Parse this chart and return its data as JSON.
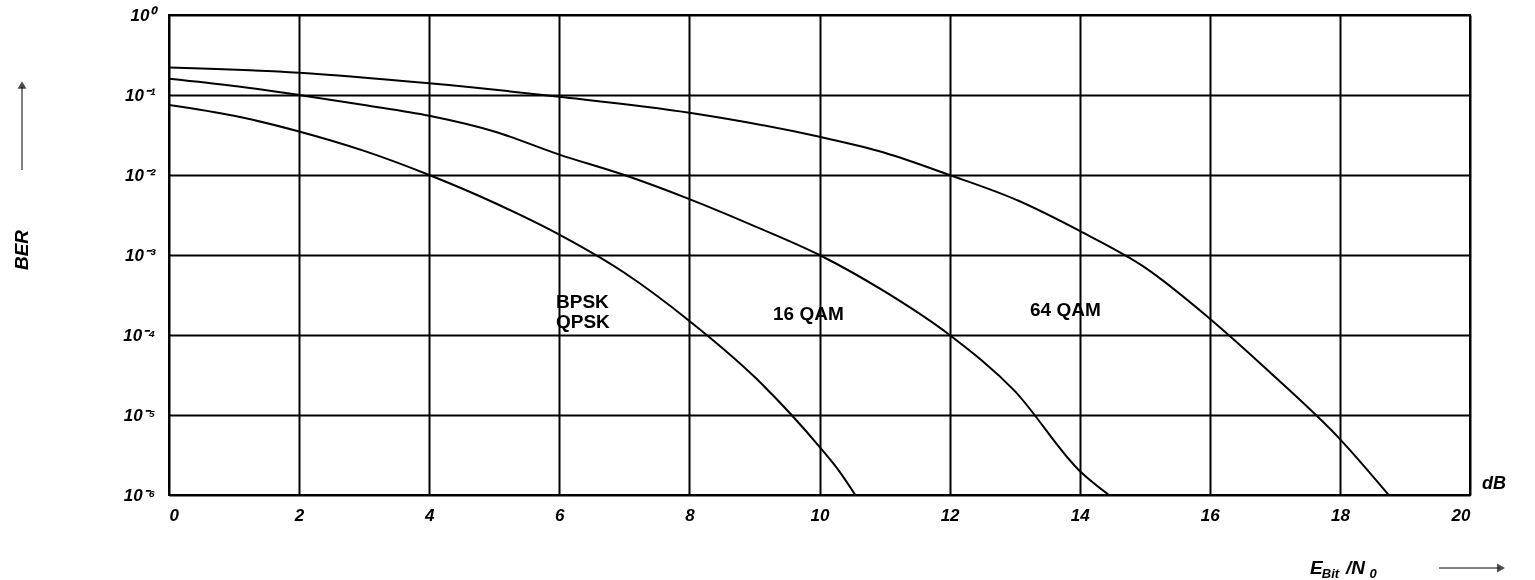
{
  "chart_data": {
    "type": "line",
    "xlabel": "E$_{Bit}$/N$_{0}$",
    "ylabel": "BER",
    "series": [
      {
        "name": "BPSK\nQPSK",
        "color": "#000000",
        "x": [
          0,
          1,
          2,
          3,
          4,
          5,
          6,
          7,
          8,
          9,
          10,
          10.3,
          10.55
        ],
        "values": [
          0.075,
          0.055,
          0.035,
          0.02,
          0.01,
          0.0045,
          0.0018,
          0.0006,
          0.00015,
          3e-05,
          4e-06,
          2e-06,
          1e-06
        ]
      },
      {
        "name": "16 QAM",
        "color": "#000000",
        "x": [
          0,
          1,
          2,
          3,
          4,
          5,
          6,
          7,
          8,
          9,
          10,
          11,
          12,
          13,
          14,
          14.45
        ],
        "values": [
          0.16,
          0.13,
          0.1,
          0.075,
          0.055,
          0.035,
          0.018,
          0.01,
          0.005,
          0.0023,
          0.001,
          0.00035,
          0.0001,
          2e-05,
          2e-06,
          1e-06
        ]
      },
      {
        "name": "64 QAM",
        "color": "#000000",
        "x": [
          0,
          2,
          4,
          6,
          8,
          10,
          11,
          12,
          13,
          14,
          15,
          16,
          17,
          18,
          18.75
        ],
        "values": [
          0.22,
          0.19,
          0.14,
          0.095,
          0.06,
          0.03,
          0.019,
          0.01,
          0.005,
          0.002,
          0.0007,
          0.00016,
          3e-05,
          5e-06,
          1e-06
        ]
      }
    ],
    "xlim": [
      0,
      20
    ],
    "xticks": [
      0,
      2,
      4,
      6,
      8,
      10,
      12,
      14,
      16,
      18,
      20
    ],
    "ylim": [
      1e-06,
      1
    ],
    "yticks": [
      {
        "value": 1e-06,
        "label": "10⁻⁶"
      },
      {
        "value": 1e-05,
        "label": "10⁻⁵"
      },
      {
        "value": 0.0001,
        "label": "10⁻⁴"
      },
      {
        "value": 0.001,
        "label": "10⁻³"
      },
      {
        "value": 0.01,
        "label": "10⁻²"
      },
      {
        "value": 0.1,
        "label": "10⁻¹"
      },
      {
        "value": 1,
        "label": "10⁰"
      }
    ],
    "log": "y",
    "grid": true,
    "marker": "none",
    "line_style": "solid",
    "annotations": [
      "dB"
    ]
  }
}
